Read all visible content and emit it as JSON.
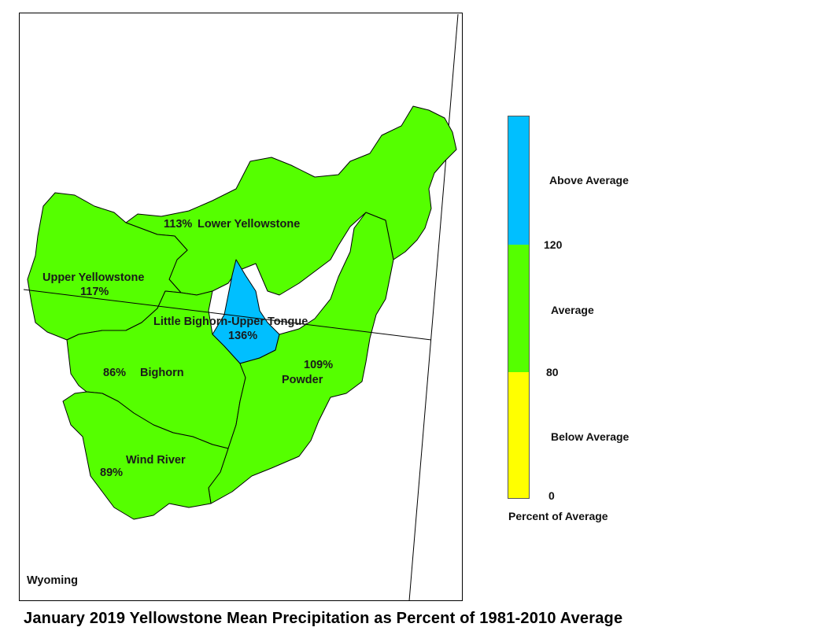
{
  "title": "January 2019 Yellowstone Mean Precipitation as Percent of 1981-2010 Average",
  "state_label": "Wyoming",
  "colors": {
    "above": "#00bfff",
    "average": "#55ff00",
    "below": "#ffff00",
    "outline": "#000000"
  },
  "basins": [
    {
      "name": "Lower Yellowstone",
      "percent": "113%",
      "category": "average"
    },
    {
      "name": "Upper Yellowstone",
      "percent": "117%",
      "category": "average"
    },
    {
      "name": "Little Bighorn-Upper Tongue",
      "percent": "136%",
      "category": "above"
    },
    {
      "name": "Bighorn",
      "percent": "86%",
      "category": "average"
    },
    {
      "name": "Powder",
      "percent": "109%",
      "category": "average"
    },
    {
      "name": "Wind River",
      "percent": "89%",
      "category": "average"
    }
  ],
  "legend": {
    "title": "Percent of Average",
    "categories": [
      {
        "label": "Above Average",
        "color": "#00bfff"
      },
      {
        "label": "Average",
        "color": "#55ff00"
      },
      {
        "label": "Below Average",
        "color": "#ffff00"
      }
    ],
    "breaks": [
      "120",
      "80",
      "0"
    ]
  }
}
